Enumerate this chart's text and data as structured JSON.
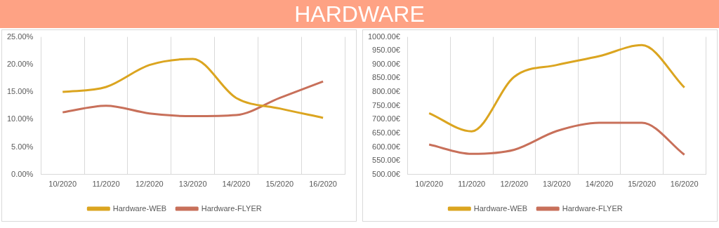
{
  "chart_data": [
    {
      "type": "line",
      "title": "HARDWARE",
      "categories": [
        "10/2020",
        "11/2020",
        "12/2020",
        "13/2020",
        "14/2020",
        "15/2020",
        "16/2020"
      ],
      "series": [
        {
          "name": "Hardware-WEB",
          "color": "#dba520",
          "values": [
            15.0,
            15.9,
            19.9,
            21.0,
            13.9,
            12.0,
            10.3
          ]
        },
        {
          "name": "Hardware-FLYER",
          "color": "#c8705a",
          "values": [
            11.3,
            12.5,
            11.1,
            10.6,
            10.8,
            13.9,
            16.9
          ]
        }
      ],
      "ylim": [
        0,
        25
      ],
      "yticks": [
        {
          "value": 0,
          "label": "0.00%"
        },
        {
          "value": 5,
          "label": "5.00%"
        },
        {
          "value": 10,
          "label": "10.00%"
        },
        {
          "value": 15,
          "label": "15.00%"
        },
        {
          "value": 20,
          "label": "20.00%"
        },
        {
          "value": 25,
          "label": "25.00%"
        }
      ],
      "grid": "x",
      "legend": "bottom",
      "marker": "none",
      "line_style": "solid"
    },
    {
      "type": "line",
      "categories": [
        "10/2020",
        "11/2020",
        "12/2020",
        "13/2020",
        "14/2020",
        "15/2020",
        "16/2020"
      ],
      "series": [
        {
          "name": "Hardware-WEB",
          "color": "#dba520",
          "values": [
            723,
            657,
            855,
            898,
            930,
            970,
            816
          ]
        },
        {
          "name": "Hardware-FLYER",
          "color": "#c8705a",
          "values": [
            609,
            575,
            590,
            658,
            688,
            688,
            572
          ]
        }
      ],
      "ylim": [
        500,
        1000
      ],
      "yticks": [
        {
          "value": 500,
          "label": "500.00€"
        },
        {
          "value": 550,
          "label": "550.00€"
        },
        {
          "value": 600,
          "label": "600.00€"
        },
        {
          "value": 650,
          "label": "650.00€"
        },
        {
          "value": 700,
          "label": "700.00€"
        },
        {
          "value": 750,
          "label": "750.00€"
        },
        {
          "value": 800,
          "label": "800.00€"
        },
        {
          "value": 850,
          "label": "850.00€"
        },
        {
          "value": 900,
          "label": "900.00€"
        },
        {
          "value": 950,
          "label": "950.00€"
        },
        {
          "value": 1000,
          "label": "1000.00€"
        }
      ],
      "grid": "x",
      "legend": "bottom",
      "marker": "none",
      "line_style": "solid"
    }
  ]
}
